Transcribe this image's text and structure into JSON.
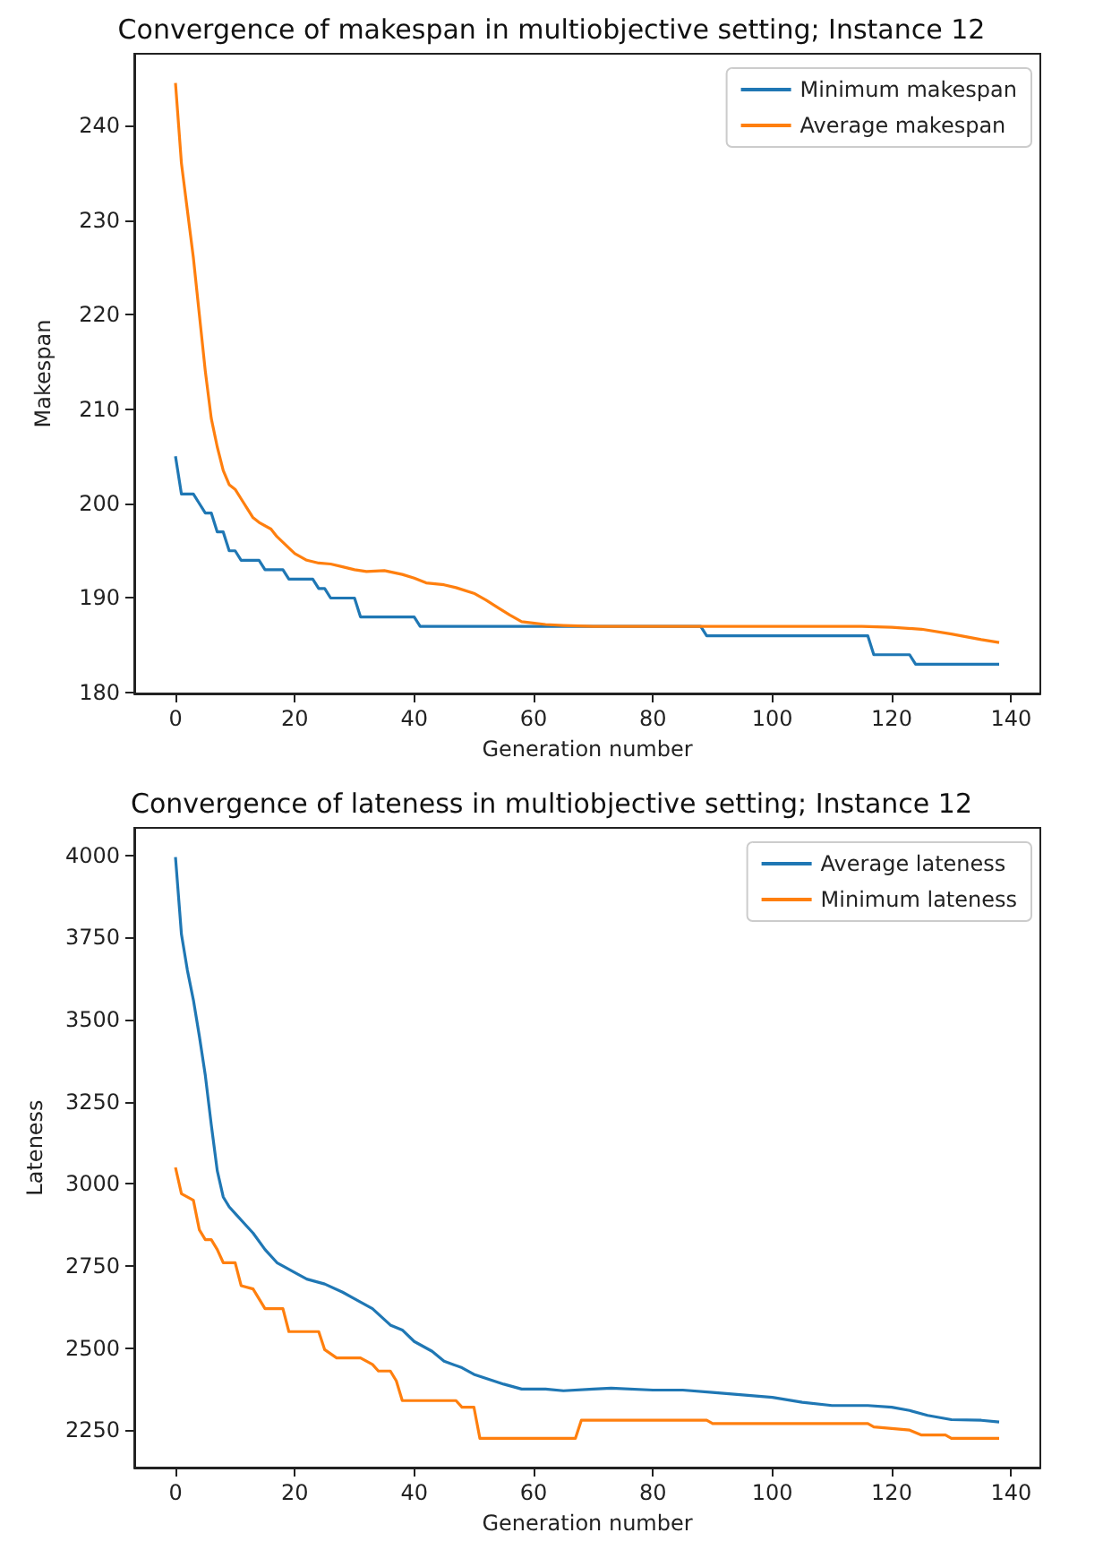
{
  "chart_data": [
    {
      "type": "line",
      "title": "Convergence of makespan in multiobjective setting; Instance 12",
      "xlabel": "Generation number",
      "ylabel": "Makespan",
      "xlim": [
        -6.9,
        144.9
      ],
      "ylim": [
        179.9,
        247.6
      ],
      "xticks": [
        0,
        20,
        40,
        60,
        80,
        100,
        120,
        140
      ],
      "yticks": [
        180,
        190,
        200,
        210,
        220,
        230,
        240
      ],
      "legend": "top right",
      "series": [
        {
          "name": "Minimum makespan",
          "color": "#1f77b4",
          "x": [
            0,
            1,
            3,
            4,
            5,
            6,
            7,
            8,
            9,
            10,
            11,
            14,
            15,
            18,
            19,
            23,
            24,
            25,
            26,
            30,
            31,
            40,
            41,
            88,
            89,
            116,
            117,
            123,
            124,
            138
          ],
          "values": [
            205,
            201,
            201,
            200,
            199,
            199,
            197,
            197,
            195,
            195,
            194,
            194,
            193,
            193,
            192,
            192,
            191,
            191,
            190,
            190,
            188,
            188,
            187,
            187,
            186,
            186,
            184,
            184,
            183,
            183
          ]
        },
        {
          "name": "Average makespan",
          "color": "#ff7f0e",
          "x": [
            0,
            1,
            2,
            3,
            4,
            5,
            6,
            7,
            8,
            9,
            10,
            11,
            12,
            13,
            14,
            16,
            17,
            19,
            20,
            22,
            24,
            26,
            28,
            30,
            32,
            35,
            38,
            40,
            42,
            45,
            47,
            50,
            52,
            54,
            56,
            58,
            62,
            65,
            70,
            110,
            115,
            120,
            125,
            130,
            135,
            138
          ],
          "values": [
            244.5,
            236,
            231,
            226,
            220,
            214,
            209,
            206,
            203.5,
            202,
            201.5,
            200.5,
            199.5,
            198.5,
            198,
            197.3,
            196.5,
            195.3,
            194.7,
            194,
            193.7,
            193.6,
            193.3,
            193,
            192.8,
            192.9,
            192.5,
            192.1,
            191.6,
            191.4,
            191.1,
            190.5,
            189.8,
            189,
            188.2,
            187.5,
            187.2,
            187.1,
            187,
            187,
            187,
            186.9,
            186.7,
            186.2,
            185.6,
            185.3
          ]
        }
      ]
    },
    {
      "type": "line",
      "title": "Convergence of lateness in multiobjective setting; Instance 12",
      "xlabel": "Generation number",
      "ylabel": "Lateness",
      "xlim": [
        -6.9,
        144.9
      ],
      "ylim": [
        2136,
        4084
      ],
      "xticks": [
        0,
        20,
        40,
        60,
        80,
        100,
        120,
        140
      ],
      "yticks": [
        2250,
        2500,
        2750,
        3000,
        3250,
        3500,
        3750,
        4000
      ],
      "legend": "top right",
      "series": [
        {
          "name": "Average lateness",
          "color": "#1f77b4",
          "x": [
            0,
            1,
            2,
            3,
            4,
            5,
            6,
            7,
            8,
            9,
            10,
            12,
            13,
            15,
            17,
            20,
            22,
            25,
            28,
            30,
            33,
            36,
            38,
            40,
            43,
            45,
            48,
            50,
            55,
            58,
            62,
            65,
            70,
            73,
            80,
            85,
            90,
            100,
            105,
            110,
            116,
            120,
            123,
            126,
            130,
            135,
            138
          ],
          "values": [
            3995,
            3760,
            3650,
            3560,
            3450,
            3330,
            3180,
            3040,
            2960,
            2930,
            2910,
            2870,
            2850,
            2800,
            2760,
            2730,
            2710,
            2695,
            2670,
            2650,
            2620,
            2570,
            2555,
            2520,
            2490,
            2460,
            2440,
            2420,
            2390,
            2375,
            2375,
            2370,
            2375,
            2378,
            2372,
            2372,
            2365,
            2350,
            2335,
            2325,
            2325,
            2320,
            2310,
            2295,
            2282,
            2280,
            2275
          ]
        },
        {
          "name": "Minimum lateness",
          "color": "#ff7f0e",
          "x": [
            0,
            1,
            3,
            4,
            5,
            6,
            7,
            8,
            10,
            11,
            13,
            14,
            15,
            18,
            19,
            24,
            25,
            27,
            31,
            33,
            34,
            36,
            37,
            38,
            47,
            48,
            50,
            51,
            67,
            68,
            89,
            90,
            116,
            117,
            123,
            125,
            129,
            130,
            138
          ],
          "values": [
            3050,
            2970,
            2950,
            2860,
            2830,
            2830,
            2800,
            2760,
            2760,
            2690,
            2680,
            2650,
            2620,
            2620,
            2550,
            2550,
            2495,
            2470,
            2470,
            2450,
            2430,
            2430,
            2400,
            2340,
            2340,
            2320,
            2320,
            2225,
            2225,
            2280,
            2280,
            2270,
            2270,
            2260,
            2250,
            2235,
            2235,
            2225,
            2225
          ]
        }
      ]
    }
  ]
}
